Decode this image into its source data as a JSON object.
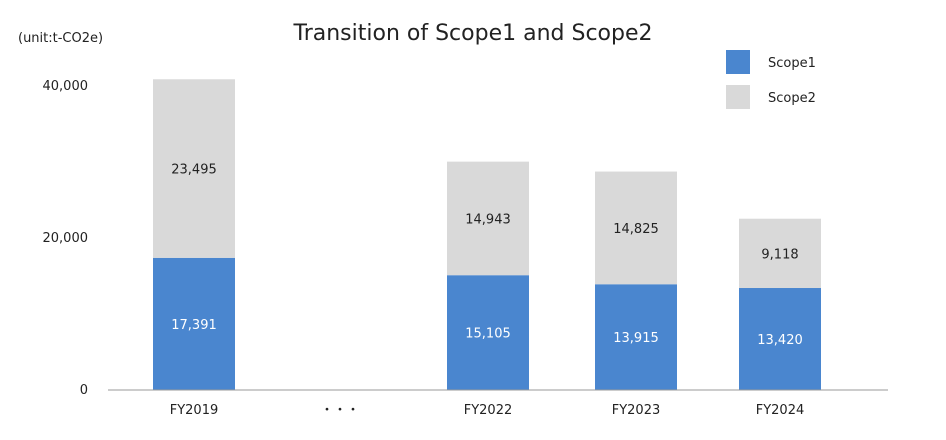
{
  "chart_data": {
    "type": "bar",
    "stacked": true,
    "title": "Transition of Scope1 and Scope2",
    "unit_label": "(unit:t-CO2e)",
    "categories": [
      "FY2019",
      "・・・",
      "FY2022",
      "FY2023",
      "FY2024"
    ],
    "series": [
      {
        "name": "Scope1",
        "color": "#4A86CF",
        "values": [
          17391,
          null,
          15105,
          13915,
          13420
        ],
        "labels": [
          "17,391",
          "",
          "15,105",
          "13,915",
          "13,420"
        ]
      },
      {
        "name": "Scope2",
        "color": "#D9D9D9",
        "values": [
          23495,
          null,
          14943,
          14825,
          9118
        ],
        "labels": [
          "23,495",
          "",
          "14,943",
          "14,825",
          "9,118"
        ]
      }
    ],
    "yticks": [
      {
        "value": 0,
        "label": "0"
      },
      {
        "value": 20000,
        "label": "20,000"
      },
      {
        "value": 40000,
        "label": "40,000"
      }
    ],
    "ylim": [
      0,
      40000
    ],
    "grid": false,
    "legend_position": "top-right"
  }
}
